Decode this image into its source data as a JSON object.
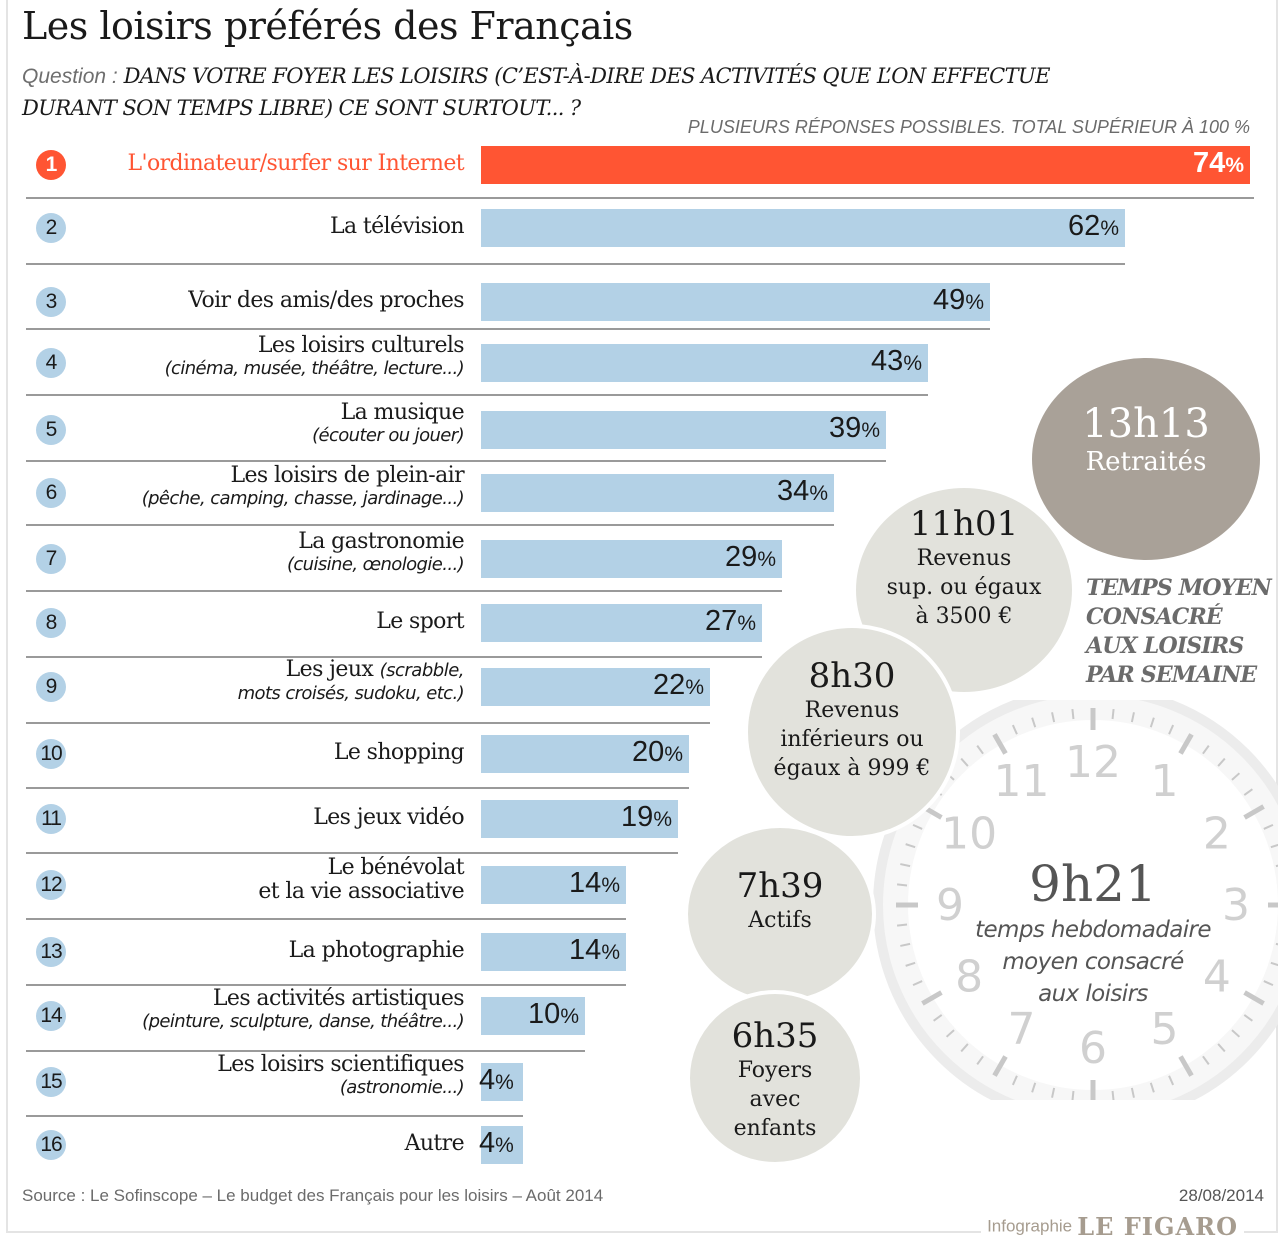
{
  "header": {
    "title": "Les loisirs préférés des Français",
    "question_label": "Question : ",
    "question_line1": "DANS VOTRE FOYER LES LOISIRS (C’EST-À-DIRE DES ACTIVITÉS QUE L’ON EFFECTUE",
    "question_line2": "DURANT SON TEMPS LIBRE) CE SONT SURTOUT... ?",
    "note": "PLUSIEURS RÉPONSES POSSIBLES. TOTAL SUPÉRIEUR À 100 %"
  },
  "colors": {
    "highlight": "#ff5533",
    "bar": "#b3d1e6",
    "bubble_light": "#e2e2dc",
    "bubble_dark": "#a9a198"
  },
  "chart_data": {
    "type": "bar",
    "orientation": "horizontal",
    "title": "Les loisirs préférés des Français",
    "unit": "%",
    "xlim": [
      0,
      74
    ],
    "categories": [
      "L'ordinateur/surfer sur Internet",
      "La télévision",
      "Voir des amis/des proches",
      "Les loisirs culturels",
      "La musique",
      "Les loisirs de plein-air",
      "La gastronomie",
      "Le sport",
      "Les jeux",
      "Le shopping",
      "Les jeux vidéo",
      "Le bénévolat et la vie associative",
      "La photographie",
      "Les activités artistiques",
      "Les loisirs scientifiques",
      "Autre"
    ],
    "values": [
      74,
      62,
      49,
      43,
      39,
      34,
      29,
      27,
      22,
      20,
      19,
      14,
      14,
      10,
      4,
      4
    ],
    "items": [
      {
        "rank": "1",
        "main": "L'ordinateur/surfer sur Internet",
        "sub": "",
        "inline": "",
        "value": 74,
        "value_label": "74",
        "highlight": true
      },
      {
        "rank": "2",
        "main": "La télévision",
        "sub": "",
        "inline": "",
        "value": 62,
        "value_label": "62"
      },
      {
        "rank": "3",
        "main": "Voir des amis/des proches",
        "sub": "",
        "inline": "",
        "value": 49,
        "value_label": "49"
      },
      {
        "rank": "4",
        "main": "Les loisirs culturels",
        "sub": "(cinéma, musée, théâtre, lecture...)",
        "inline": "",
        "value": 43,
        "value_label": "43"
      },
      {
        "rank": "5",
        "main": "La musique",
        "sub": "(écouter ou jouer)",
        "inline": "",
        "value": 39,
        "value_label": "39"
      },
      {
        "rank": "6",
        "main": "Les loisirs de plein-air",
        "sub": "(pêche, camping, chasse, jardinage...)",
        "inline": "",
        "value": 34,
        "value_label": "34"
      },
      {
        "rank": "7",
        "main": "La gastronomie",
        "sub": "(cuisine, œnologie...)",
        "inline": "",
        "value": 29,
        "value_label": "29"
      },
      {
        "rank": "8",
        "main": "Le sport",
        "sub": "",
        "inline": "",
        "value": 27,
        "value_label": "27"
      },
      {
        "rank": "9",
        "main": "Les jeux",
        "inline": "(scrabble,",
        "sub": "mots croisés, sudoku, etc.)",
        "value": 22,
        "value_label": "22"
      },
      {
        "rank": "10",
        "main": "Le shopping",
        "sub": "",
        "inline": "",
        "value": 20,
        "value_label": "20"
      },
      {
        "rank": "11",
        "main": "Les jeux vidéo",
        "sub": "",
        "inline": "",
        "value": 19,
        "value_label": "19"
      },
      {
        "rank": "12",
        "main": "Le bénévolat",
        "main2": "et la vie associative",
        "sub": "",
        "inline": "",
        "value": 14,
        "value_label": "14"
      },
      {
        "rank": "13",
        "main": "La photographie",
        "sub": "",
        "inline": "",
        "value": 14,
        "value_label": "14"
      },
      {
        "rank": "14",
        "main": "Les activités artistiques",
        "sub": "(peinture, sculpture, danse, théâtre...)",
        "inline": "",
        "value": 10,
        "value_label": "10"
      },
      {
        "rank": "15",
        "main": "Les loisirs scientifiques",
        "sub": "(astronomie...)",
        "inline": "",
        "value": 4,
        "value_label": "4"
      },
      {
        "rank": "16",
        "main": "Autre",
        "sub": "",
        "inline": "",
        "value": 4,
        "value_label": "4"
      }
    ],
    "percent_symbol": "%"
  },
  "time_panel": {
    "caption": [
      "TEMPS MOYEN",
      "CONSACRÉ",
      "AUX LOISIRS",
      "PAR SEMAINE"
    ],
    "average": {
      "time": "9h21",
      "desc": [
        "temps hebdomadaire",
        "moyen consacré",
        "aux loisirs"
      ]
    },
    "groups": [
      {
        "time": "13h13",
        "desc": [
          "Retraités"
        ]
      },
      {
        "time": "11h01",
        "desc": [
          "Revenus",
          "sup. ou égaux",
          "à 3500 €"
        ]
      },
      {
        "time": "8h30",
        "desc": [
          "Revenus",
          "inférieurs ou",
          "égaux à 999 €"
        ]
      },
      {
        "time": "7h39",
        "desc": [
          "Actifs"
        ]
      },
      {
        "time": "6h35",
        "desc": [
          "Foyers",
          "avec",
          "enfants"
        ]
      }
    ],
    "clock_numerals": [
      "12",
      "1",
      "2",
      "3",
      "4",
      "5",
      "6",
      "7",
      "8",
      "9",
      "10",
      "11"
    ]
  },
  "footer": {
    "source": "Source : Le Sofinscope – Le budget des Français pour les loisirs – Août 2014",
    "date": "28/08/2014",
    "credit_prefix": "Infographie",
    "credit_brand": "LE FIGARO"
  }
}
